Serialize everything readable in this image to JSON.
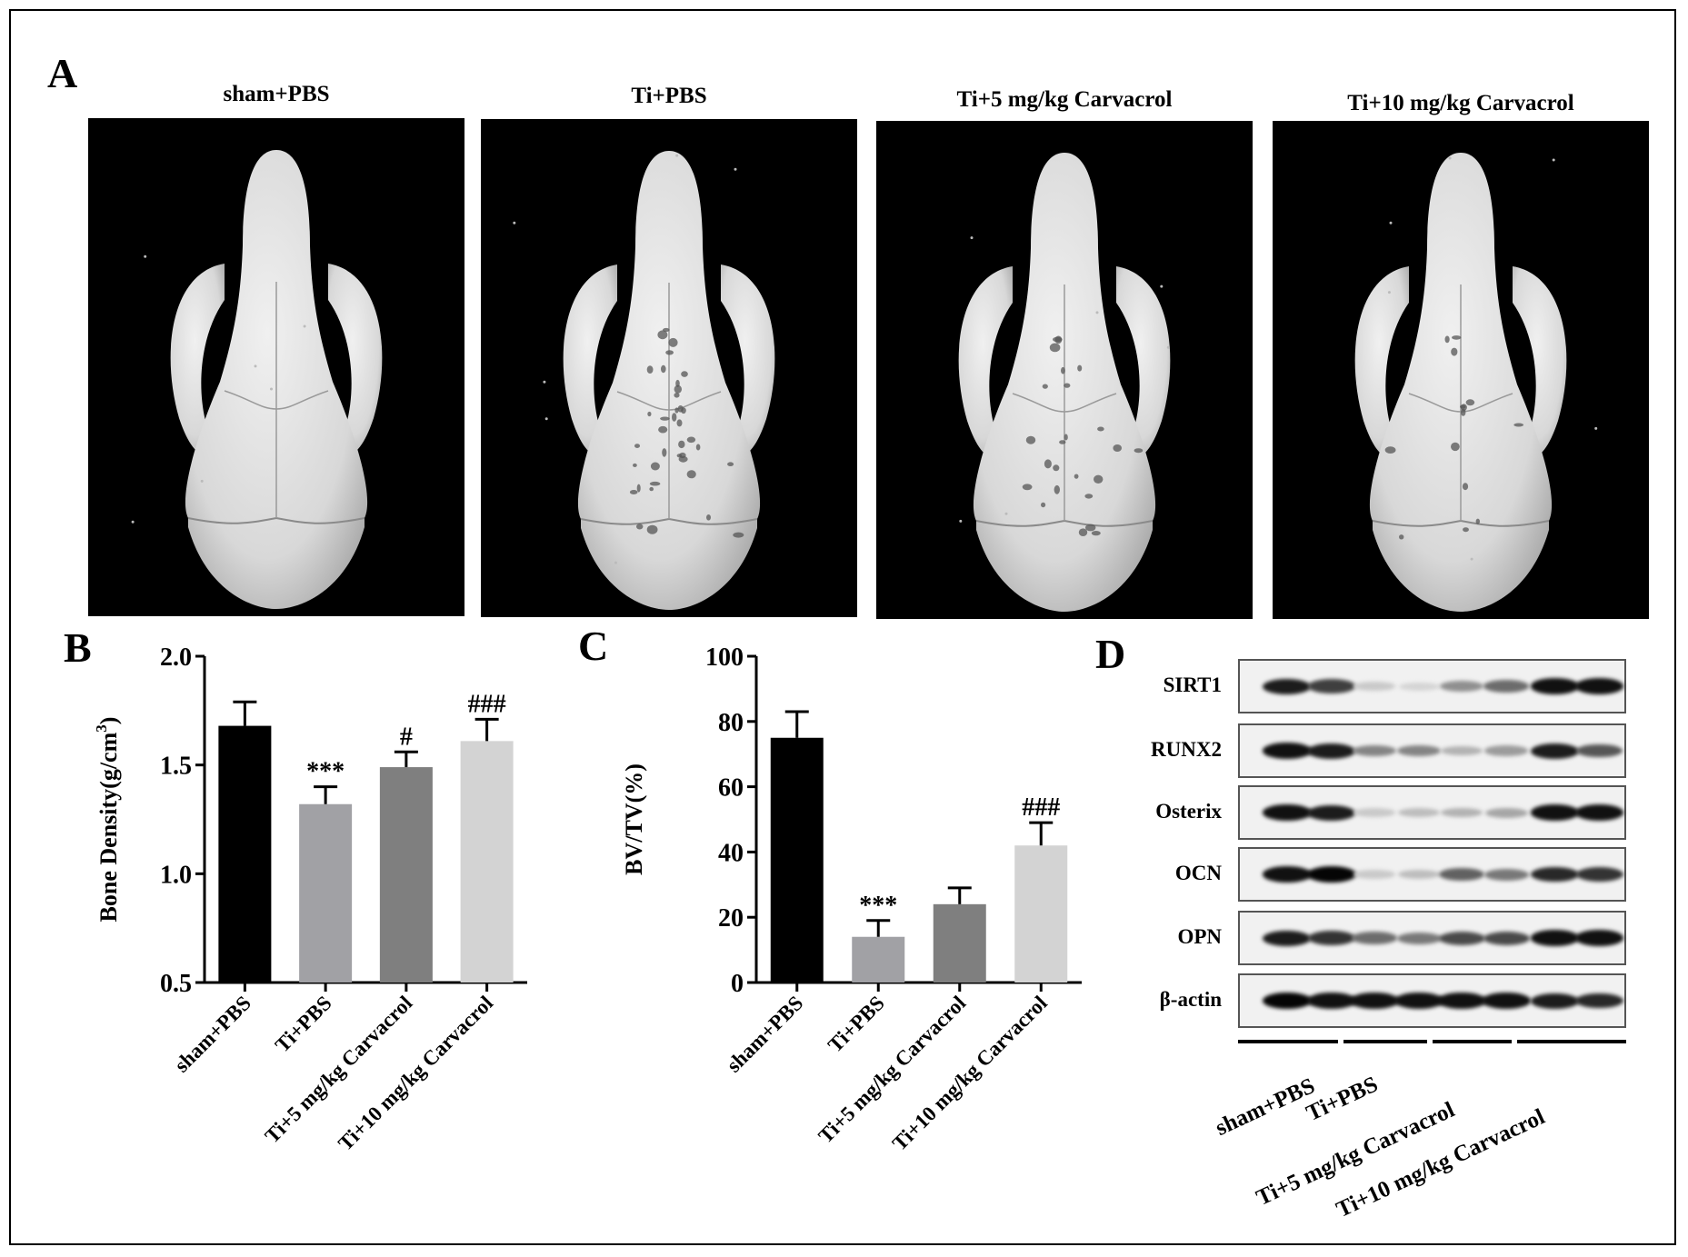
{
  "figure": {
    "panel_labels": [
      "A",
      "B",
      "C",
      "D"
    ],
    "groups": [
      "sham+PBS",
      "Ti+PBS",
      "Ti+5 mg/kg Carvacrol",
      "Ti+10 mg/kg Carvacrol"
    ],
    "group_colors": [
      "#000000",
      "#a1a1a5",
      "#7f7f7f",
      "#d3d3d3"
    ]
  },
  "panel_a": {
    "images": [
      {
        "title": "sham+PBS",
        "description": "micro-CT 3D reconstruction of skull, intact surface",
        "osteolysis": "minimal"
      },
      {
        "title": "Ti+PBS",
        "description": "micro-CT 3D reconstruction of skull, extensive osteolysis",
        "osteolysis": "severe"
      },
      {
        "title": "Ti+5 mg/kg Carvacrol",
        "description": "micro-CT 3D reconstruction of skull, moderate osteolysis",
        "osteolysis": "moderate"
      },
      {
        "title": "Ti+10 mg/kg Carvacrol",
        "description": "micro-CT 3D reconstruction of skull, mild osteolysis",
        "osteolysis": "mild"
      }
    ]
  },
  "chart_data": [
    {
      "panel": "B",
      "type": "bar",
      "title": "",
      "xlabel": "",
      "ylabel": "Bone Density(g/cm³)",
      "ylabel_main": "Bone Density(g/cm",
      "ylabel_sup": "3",
      "ylabel_close": ")",
      "categories": [
        "sham+PBS",
        "Ti+PBS",
        "Ti+5 mg/kg Carvacrol",
        "Ti+10 mg/kg Carvacrol"
      ],
      "values": [
        1.68,
        1.32,
        1.49,
        1.61
      ],
      "errors": [
        0.11,
        0.08,
        0.07,
        0.1
      ],
      "annotations": [
        "",
        "***",
        "#",
        "###"
      ],
      "ylim": [
        0.5,
        2.0
      ],
      "yticks": [
        0.5,
        1.0,
        1.5,
        2.0
      ],
      "ytick_labels": [
        "0.5",
        "1.0",
        "1.5",
        "2.0"
      ],
      "grid": false
    },
    {
      "panel": "C",
      "type": "bar",
      "title": "",
      "xlabel": "",
      "ylabel": "BV/TV(%)",
      "categories": [
        "sham+PBS",
        "Ti+PBS",
        "Ti+5 mg/kg Carvacrol",
        "Ti+10 mg/kg Carvacrol"
      ],
      "values": [
        75,
        14,
        24,
        42
      ],
      "errors": [
        8,
        5,
        5,
        7
      ],
      "annotations": [
        "",
        "***",
        "",
        "###"
      ],
      "ylim": [
        0,
        100
      ],
      "yticks": [
        0,
        20,
        40,
        60,
        80,
        100
      ],
      "ytick_labels": [
        "0",
        "20",
        "40",
        "60",
        "80",
        "100"
      ],
      "grid": false
    }
  ],
  "panel_d": {
    "proteins": [
      {
        "name": "SIRT1",
        "intensity": [
          0.9,
          0.75,
          0.15,
          0.1,
          0.4,
          0.55,
          0.95,
          0.95
        ]
      },
      {
        "name": "RUNX2",
        "intensity": [
          0.95,
          0.9,
          0.45,
          0.45,
          0.25,
          0.35,
          0.9,
          0.65
        ]
      },
      {
        "name": "Osterix",
        "intensity": [
          0.95,
          0.9,
          0.15,
          0.2,
          0.25,
          0.3,
          0.95,
          0.95
        ]
      },
      {
        "name": "OCN",
        "intensity": [
          0.95,
          1.0,
          0.15,
          0.2,
          0.6,
          0.5,
          0.85,
          0.8
        ]
      },
      {
        "name": "OPN",
        "intensity": [
          0.9,
          0.8,
          0.55,
          0.5,
          0.7,
          0.7,
          0.95,
          0.95
        ]
      },
      {
        "name": "β-actin",
        "intensity": [
          1.0,
          0.95,
          0.95,
          0.95,
          0.95,
          0.95,
          0.9,
          0.85
        ]
      }
    ],
    "group_labels": [
      "sham+PBS",
      "Ti+PBS",
      "Ti+5 mg/kg Carvacrol",
      "Ti+10 mg/kg Carvacrol"
    ]
  }
}
